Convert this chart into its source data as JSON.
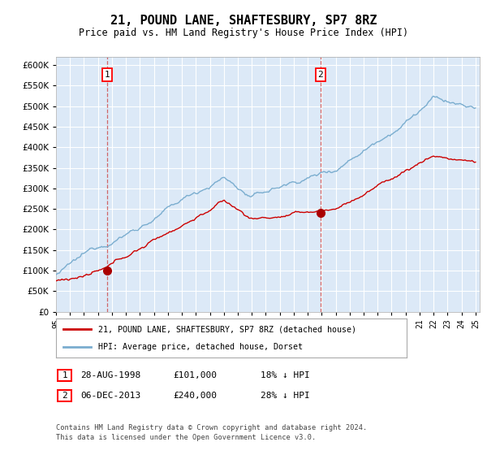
{
  "title": "21, POUND LANE, SHAFTESBURY, SP7 8RZ",
  "subtitle": "Price paid vs. HM Land Registry's House Price Index (HPI)",
  "plot_bg_color": "#dce9f7",
  "ylim": [
    0,
    620000
  ],
  "xlim": [
    1995,
    2025.3
  ],
  "sale1_year": 1998.67,
  "sale1_price": 101000,
  "sale2_year": 2013.92,
  "sale2_price": 240000,
  "legend_line1": "21, POUND LANE, SHAFTESBURY, SP7 8RZ (detached house)",
  "legend_line2": "HPI: Average price, detached house, Dorset",
  "table_row1_date": "28-AUG-1998",
  "table_row1_price": "£101,000",
  "table_row1_hpi": "18% ↓ HPI",
  "table_row2_date": "06-DEC-2013",
  "table_row2_price": "£240,000",
  "table_row2_hpi": "28% ↓ HPI",
  "footnote1": "Contains HM Land Registry data © Crown copyright and database right 2024.",
  "footnote2": "This data is licensed under the Open Government Licence v3.0.",
  "red_color": "#cc0000",
  "blue_color": "#7aadcf",
  "sale_marker_color": "#aa0000"
}
